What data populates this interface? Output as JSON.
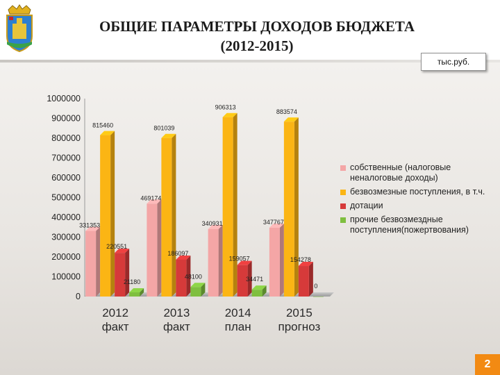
{
  "header": {
    "title_line1": "ОБЩИЕ ПАРАМЕТРЫ ДОХОДОВ БЮДЖЕТА",
    "title_line2": "(2012-2015)",
    "unit": "тыс.руб."
  },
  "emblem": {
    "icon": "city-coat-of-arms-icon"
  },
  "page_number": "2",
  "colors": {
    "own": "#f4a6a6",
    "grants": "#fbb514",
    "subsidies": "#d63a3a",
    "other": "#7fbf3f",
    "page_badge": "#f28a13"
  },
  "chart_data": {
    "type": "bar",
    "categories": [
      "2012\nфакт",
      "2013\nфакт",
      "2014\nплан",
      "2015\nпрогноз"
    ],
    "series": [
      {
        "name": "собственные (налоговые неналоговые доходы)",
        "values": [
          331353,
          469174,
          340931,
          347767
        ],
        "labels": [
          "331353",
          "469174",
          "340931",
          "347767"
        ]
      },
      {
        "name": "безвозмезные поступления, в т.ч.",
        "values": [
          815460,
          801039,
          906313,
          883574
        ],
        "labels": [
          "815460",
          "801039",
          "906313",
          "883574"
        ]
      },
      {
        "name": "дотации",
        "values": [
          220551,
          186097,
          159057,
          154278
        ],
        "labels": [
          "220551",
          "186097",
          "159057",
          "154278"
        ]
      },
      {
        "name": "прочие безвозмездные поступления(пожертвования)",
        "values": [
          21180,
          48100,
          34471,
          0
        ],
        "labels": [
          "21180",
          "48100",
          "34471",
          "0"
        ]
      }
    ],
    "ylim": [
      0,
      1000000
    ],
    "yticks": [
      "0",
      "100000",
      "200000",
      "300000",
      "400000",
      "500000",
      "600000",
      "700000",
      "800000",
      "900000",
      "1000000"
    ],
    "legend_position": "right",
    "grid": false
  }
}
